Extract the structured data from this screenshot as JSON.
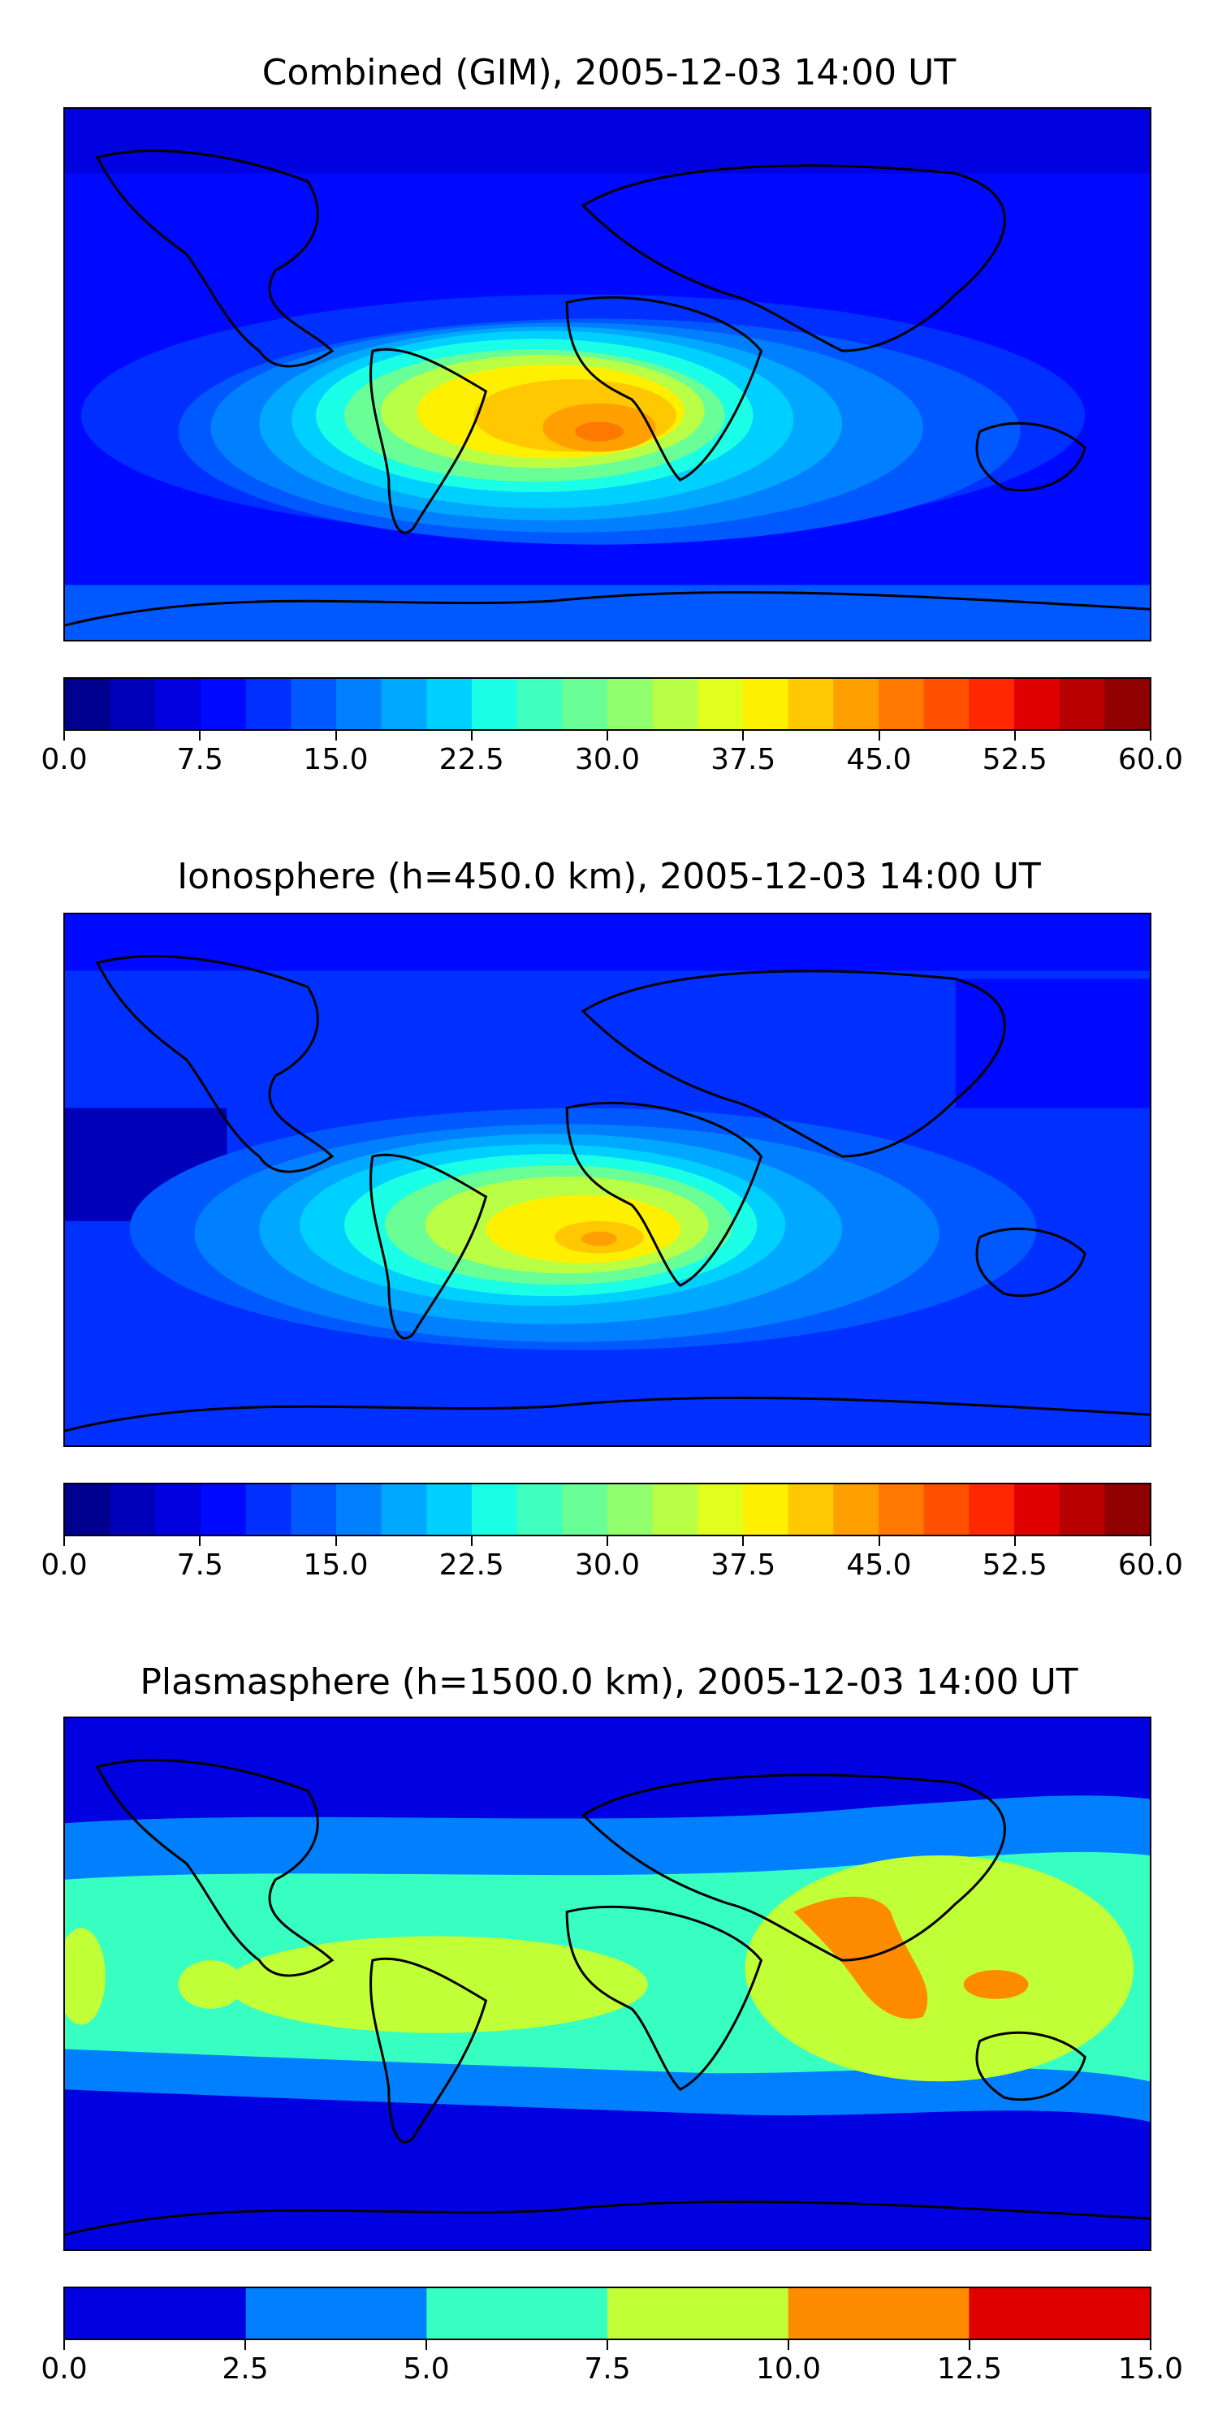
{
  "panels": [
    {
      "title": "Combined (GIM), 2005-12-03 14:00 UT",
      "colorbar": {
        "range": [
          0,
          60
        ],
        "tick_labels": [
          "0.0",
          "7.5",
          "15.0",
          "22.5",
          "30.0",
          "37.5",
          "45.0",
          "52.5",
          "60.0"
        ],
        "colors": [
          "#00008f",
          "#0000b8",
          "#0000e0",
          "#0009ff",
          "#0030ff",
          "#0058ff",
          "#0080ff",
          "#00a8ff",
          "#00d0ff",
          "#1affe5",
          "#41ffbe",
          "#69ff96",
          "#91ff6e",
          "#b9ff46",
          "#e1ff1e",
          "#fff000",
          "#ffc800",
          "#ffa000",
          "#ff7800",
          "#ff5000",
          "#ff2800",
          "#e00000",
          "#b80000",
          "#8f0000"
        ]
      },
      "map_description_color_peak": "#ff7800"
    },
    {
      "title": "Ionosphere  (h=450.0 km), 2005-12-03 14:00 UT",
      "colorbar": {
        "range": [
          0,
          60
        ],
        "tick_labels": [
          "0.0",
          "7.5",
          "15.0",
          "22.5",
          "30.0",
          "37.5",
          "45.0",
          "52.5",
          "60.0"
        ],
        "colors": [
          "#00008f",
          "#0000b8",
          "#0000e0",
          "#0009ff",
          "#0030ff",
          "#0058ff",
          "#0080ff",
          "#00a8ff",
          "#00d0ff",
          "#1affe5",
          "#41ffbe",
          "#69ff96",
          "#91ff6e",
          "#b9ff46",
          "#e1ff1e",
          "#fff000",
          "#ffc800",
          "#ffa000",
          "#ff7800",
          "#ff5000",
          "#ff2800",
          "#e00000",
          "#b80000",
          "#8f0000"
        ]
      },
      "map_description_color_peak": "#ffa000"
    },
    {
      "title": "Plasmasphere (h=1500.0 km), 2005-12-03 14:00 UT",
      "colorbar": {
        "range": [
          0,
          15
        ],
        "tick_labels": [
          "0.0",
          "2.5",
          "5.0",
          "7.5",
          "10.0",
          "12.5",
          "15.0"
        ],
        "colors": [
          "#0000e0",
          "#0080ff",
          "#36ffc1",
          "#c1ff36",
          "#ff8c00",
          "#e00000"
        ]
      },
      "map_description_color_peak": "#ff8c00"
    }
  ]
}
